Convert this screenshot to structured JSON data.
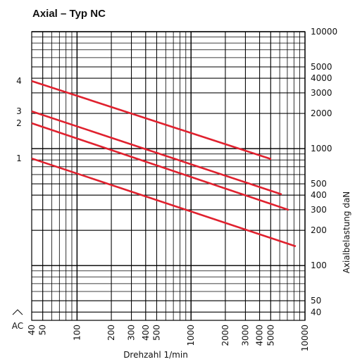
{
  "chart_data": {
    "type": "line",
    "title": "Axial – Typ NC",
    "x_label": "Drehzahl 1/min",
    "y_label": "Axialbelastung daN",
    "y_axis_side": "right",
    "log_x": true,
    "log_y": true,
    "grid": true,
    "line_color": "#e0212e",
    "xlim": [
      40,
      10000
    ],
    "ylim": [
      34,
      10000
    ],
    "xticks": [
      40,
      50,
      100,
      200,
      300,
      400,
      500,
      1000,
      2000,
      3000,
      4000,
      5000,
      10000
    ],
    "yticks": [
      40,
      50,
      100,
      200,
      300,
      400,
      500,
      1000,
      2000,
      3000,
      4000,
      5000,
      10000
    ],
    "baseline_label": "AC",
    "series": [
      {
        "name": "1",
        "color": "#e0212e",
        "x": [
          40,
          8300
        ],
        "values": [
          824,
          146
        ]
      },
      {
        "name": "2",
        "color": "#e0212e",
        "x": [
          40,
          7200
        ],
        "values": [
          1650,
          299
        ]
      },
      {
        "name": "3",
        "color": "#e0212e",
        "x": [
          40,
          6250
        ],
        "values": [
          2085,
          406
        ]
      },
      {
        "name": "4",
        "color": "#e0212e",
        "x": [
          40,
          5050
        ],
        "values": [
          3785,
          813
        ]
      }
    ]
  }
}
